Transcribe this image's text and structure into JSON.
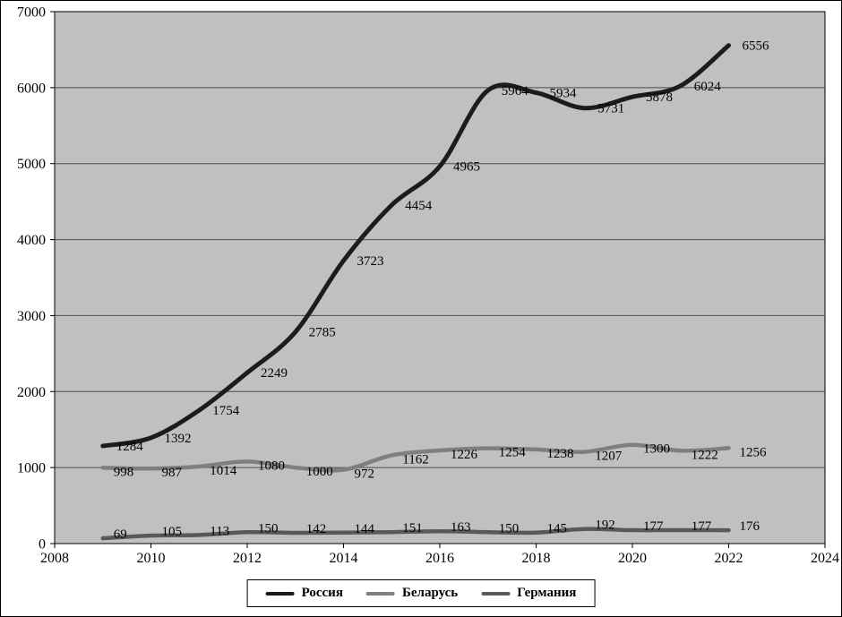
{
  "chart_data": {
    "type": "line",
    "x": [
      2009,
      2010,
      2011,
      2012,
      2013,
      2014,
      2015,
      2016,
      2017,
      2018,
      2019,
      2020,
      2021,
      2022
    ],
    "series": [
      {
        "name": "Россия",
        "color": "#1c1c1c",
        "line_width": 5,
        "values": [
          1284,
          1392,
          1754,
          2249,
          2785,
          3723,
          4454,
          4965,
          5964,
          5934,
          5731,
          5878,
          6024,
          6556
        ],
        "label_dx": 15,
        "label_dy": 5
      },
      {
        "name": "Беларусь",
        "color": "#7f7f7f",
        "line_width": 4.5,
        "values": [
          998,
          987,
          1014,
          1080,
          1000,
          972,
          1162,
          1226,
          1254,
          1238,
          1207,
          1300,
          1222,
          1256
        ],
        "label_dx": 12,
        "label_dy": 9
      },
      {
        "name": "Германия",
        "color": "#595959",
        "line_width": 4.5,
        "values": [
          69,
          105,
          113,
          150,
          142,
          144,
          151,
          163,
          150,
          145,
          192,
          177,
          177,
          176
        ],
        "label_dx": 12,
        "label_dy": 0
      }
    ],
    "xlim": [
      2008,
      2024
    ],
    "ylim": [
      0,
      7000
    ],
    "x_ticks": [
      2008,
      2010,
      2012,
      2014,
      2016,
      2018,
      2020,
      2022,
      2024
    ],
    "y_ticks": [
      0,
      1000,
      2000,
      3000,
      4000,
      5000,
      6000,
      7000
    ],
    "title": "",
    "xlabel": "",
    "ylabel": "",
    "grid": true,
    "plot_background": "#c0c0c0",
    "gridline_color": "#4d4d4d",
    "legend_position": "bottom"
  },
  "legend": {
    "items": [
      "Россия",
      "Беларусь",
      "Германия"
    ]
  }
}
